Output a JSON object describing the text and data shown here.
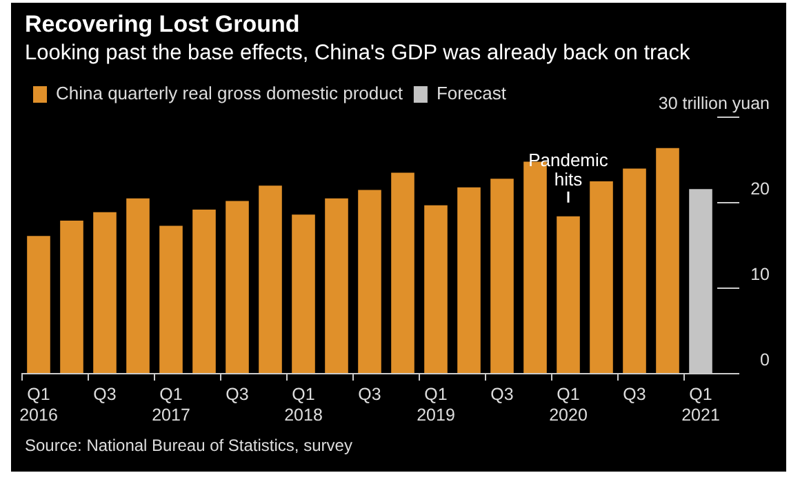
{
  "chart_data": {
    "type": "bar",
    "title": "Recovering Lost Ground",
    "subtitle": "Looking past the base effects, China's GDP was already back on track",
    "categories": [
      "Q1\n2016",
      null,
      "Q3",
      null,
      "Q1\n2017",
      null,
      "Q3",
      null,
      "Q1\n2018",
      null,
      "Q3",
      null,
      "Q1\n2019",
      null,
      "Q3",
      null,
      "Q1\n2020",
      null,
      "Q3",
      null,
      "Q1\n2021"
    ],
    "series": [
      {
        "name": "China quarterly real gross domestic product",
        "color": "#e0902a",
        "values": [
          16.1,
          17.9,
          18.9,
          20.5,
          17.3,
          19.2,
          20.2,
          22.0,
          18.6,
          20.5,
          21.5,
          23.5,
          19.7,
          21.8,
          22.8,
          24.8,
          18.4,
          22.5,
          24.0,
          26.4,
          null
        ]
      },
      {
        "name": "Forecast",
        "color": "#c4c4c4",
        "values": [
          null,
          null,
          null,
          null,
          null,
          null,
          null,
          null,
          null,
          null,
          null,
          null,
          null,
          null,
          null,
          null,
          null,
          null,
          null,
          null,
          21.6
        ]
      }
    ],
    "stacked": true,
    "ylim": [
      0,
      30
    ],
    "yticks": [
      0,
      10,
      20,
      {
        "value": 30,
        "label": "30 trillion yuan"
      }
    ],
    "grid": false,
    "legend": "top left",
    "annotations": [
      {
        "text": "Pandemic hits",
        "x": "Q1\n2020",
        "y": 18.4
      },
      "Source: National Bureau of Statistics, survey"
    ]
  }
}
